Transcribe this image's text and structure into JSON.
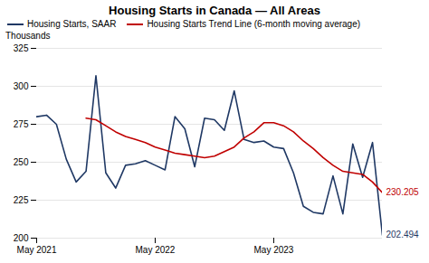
{
  "chart_data": {
    "type": "line",
    "title": "Housing Starts in Canada — All Areas",
    "y_label": "Thousands",
    "categories": [
      "May 2021",
      null,
      null,
      null,
      null,
      null,
      null,
      null,
      null,
      null,
      null,
      null,
      "May 2022",
      null,
      null,
      null,
      null,
      null,
      null,
      null,
      null,
      null,
      null,
      null,
      "May 2023",
      null,
      null,
      null,
      null,
      null,
      null,
      null,
      null,
      null,
      null,
      null
    ],
    "series": [
      {
        "name": "Housing Starts, SAAR",
        "color": "#1f3864",
        "values": [
          280,
          281,
          275,
          252,
          237,
          244,
          307,
          243,
          233,
          248,
          249,
          251,
          248,
          245,
          280,
          272,
          247,
          279,
          278,
          271,
          297,
          265,
          263,
          264,
          260,
          259,
          243,
          221,
          217,
          216,
          241,
          216,
          262,
          240,
          263,
          202
        ]
      },
      {
        "name": "Housing Starts Trend Line (6-month moving average)",
        "color": "#c00000",
        "values": [
          null,
          null,
          null,
          null,
          null,
          279,
          278,
          274,
          270,
          267,
          265,
          263,
          260,
          258,
          256,
          255,
          254,
          253,
          254,
          257,
          260,
          266,
          270,
          276,
          276,
          274,
          270,
          264,
          259,
          253,
          248,
          244,
          243,
          242,
          237,
          230
        ]
      }
    ],
    "annotations": [
      {
        "text": "230.205",
        "series": "Housing Starts Trend Line (6-month moving average)"
      },
      {
        "text": "202.494",
        "series": "Housing Starts, SAAR"
      }
    ],
    "ylim": [
      200,
      325
    ],
    "yticks": [
      200,
      225,
      250,
      275,
      300,
      325
    ],
    "grid": true,
    "legend": "upper left"
  }
}
